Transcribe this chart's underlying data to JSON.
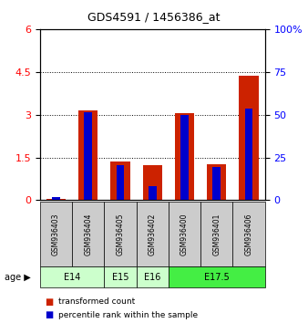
{
  "title": "GDS4591 / 1456386_at",
  "samples": [
    "GSM936403",
    "GSM936404",
    "GSM936405",
    "GSM936402",
    "GSM936400",
    "GSM936401",
    "GSM936406"
  ],
  "red_values": [
    0.05,
    3.15,
    1.35,
    1.22,
    3.06,
    1.27,
    4.37
  ],
  "blue_values": [
    0.1,
    3.1,
    1.22,
    0.5,
    2.99,
    1.17,
    3.22
  ],
  "ylim_left": [
    0,
    6
  ],
  "ylim_right": [
    0,
    100
  ],
  "yticks_left": [
    0,
    1.5,
    3.0,
    4.5,
    6.0
  ],
  "yticks_right": [
    0,
    25,
    50,
    75,
    100
  ],
  "red_color": "#cc2200",
  "blue_color": "#0000cc",
  "bg_color": "#ffffff",
  "sample_bg_color": "#cccccc",
  "age_groups": [
    {
      "label": "E14",
      "start": 0,
      "end": 2,
      "color": "#ccffcc"
    },
    {
      "label": "E15",
      "start": 2,
      "end": 3,
      "color": "#ccffcc"
    },
    {
      "label": "E16",
      "start": 3,
      "end": 4,
      "color": "#ccffcc"
    },
    {
      "label": "E17.5",
      "start": 4,
      "end": 7,
      "color": "#44ee44"
    }
  ]
}
